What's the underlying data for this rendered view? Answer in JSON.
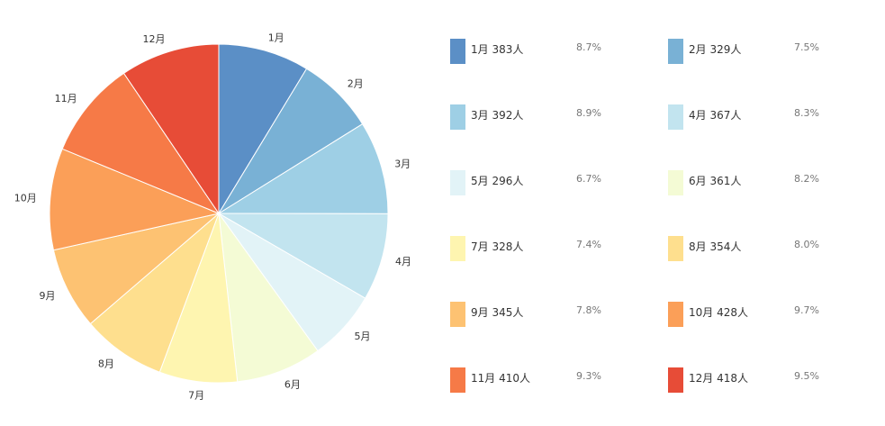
{
  "chart_data": {
    "type": "pie",
    "categories": [
      "1月",
      "2月",
      "3月",
      "4月",
      "5月",
      "6月",
      "7月",
      "8月",
      "9月",
      "10月",
      "11月",
      "12月"
    ],
    "values": [
      383,
      329,
      392,
      367,
      296,
      361,
      328,
      354,
      345,
      428,
      410,
      418
    ],
    "unit": "人",
    "percentages": [
      "8.7%",
      "7.5%",
      "8.9%",
      "8.3%",
      "6.7%",
      "8.2%",
      "7.4%",
      "8.0%",
      "7.8%",
      "9.7%",
      "9.3%",
      "9.5%"
    ],
    "colors": [
      "#5b8fc6",
      "#79b1d5",
      "#9ecfe5",
      "#c2e4ef",
      "#e2f3f7",
      "#f4fbd5",
      "#fef5b0",
      "#fedf8e",
      "#fdc272",
      "#fb9f58",
      "#f67a47",
      "#e74c37"
    ],
    "legend": {
      "position": "right",
      "items": [
        {
          "label": "1月  383人",
          "pct": "8.7%"
        },
        {
          "label": "2月  329人",
          "pct": "7.5%"
        },
        {
          "label": "3月  392人",
          "pct": "8.9%"
        },
        {
          "label": "4月  367人",
          "pct": "8.3%"
        },
        {
          "label": "5月  296人",
          "pct": "6.7%"
        },
        {
          "label": "6月  361人",
          "pct": "8.2%"
        },
        {
          "label": "7月  328人",
          "pct": "7.4%"
        },
        {
          "label": "8月  354人",
          "pct": "8.0%"
        },
        {
          "label": "9月  345人",
          "pct": "7.8%"
        },
        {
          "label": "10月  428人",
          "pct": "9.7%"
        },
        {
          "label": "11月  410人",
          "pct": "9.3%"
        },
        {
          "label": "12月  418人",
          "pct": "9.5%"
        }
      ]
    }
  }
}
